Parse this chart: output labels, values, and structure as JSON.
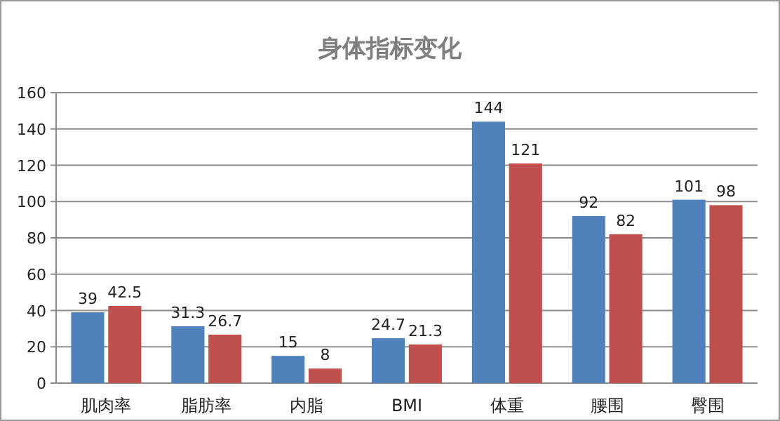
{
  "chart_data": {
    "type": "bar",
    "title": "身体指标变化",
    "categories": [
      "肌肉率",
      "脂肪率",
      "内脂",
      "BMI",
      "体重",
      "腰围",
      "臀围"
    ],
    "series": [
      {
        "color": "#4f81bd",
        "values": [
          39,
          31.3,
          15,
          24.7,
          144,
          92,
          101
        ]
      },
      {
        "color": "#c0504d",
        "values": [
          42.5,
          26.7,
          8,
          21.3,
          121,
          82,
          98
        ]
      }
    ],
    "ylim": [
      0,
      160
    ],
    "yticks": [
      0,
      20,
      40,
      60,
      80,
      100,
      120,
      140,
      160
    ],
    "grid": "y",
    "data_labels": true
  }
}
